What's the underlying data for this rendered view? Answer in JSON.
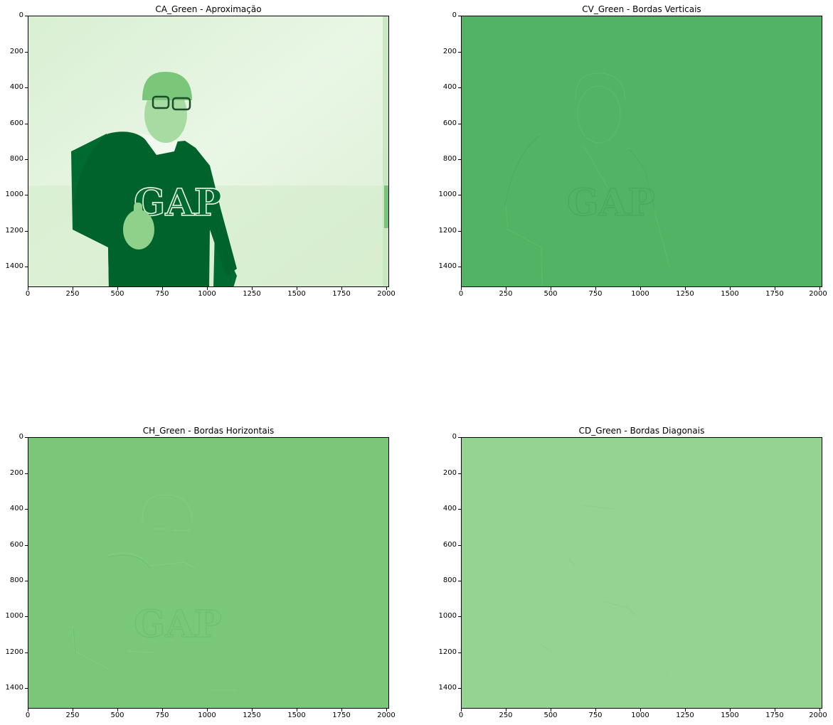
{
  "colors": {
    "ca_light": "#e6f4e1",
    "ca_dark": "#00632b",
    "cv_fill": "#52b365",
    "ch_fill": "#7ac77a",
    "cd_fill": "#94d390"
  },
  "chart_data": [
    {
      "type": "heatmap",
      "title": "CA_Green - Aproximação",
      "colormap": "Greens",
      "xlim": [
        0,
        2016
      ],
      "ylim": [
        1512,
        0
      ],
      "xticks": [
        "0",
        "250",
        "500",
        "750",
        "1000",
        "1250",
        "1500",
        "1750",
        "2000"
      ],
      "yticks": [
        "0",
        "200",
        "400",
        "600",
        "800",
        "1000",
        "1200",
        "1400"
      ],
      "content": "approximation coefficients, green channel"
    },
    {
      "type": "heatmap",
      "title": "CV_Green - Bordas Verticais",
      "colormap": "Greens",
      "xlim": [
        0,
        2016
      ],
      "ylim": [
        1512,
        0
      ],
      "xticks": [
        "0",
        "250",
        "500",
        "750",
        "1000",
        "1250",
        "1500",
        "1750",
        "2000"
      ],
      "yticks": [
        "0",
        "200",
        "400",
        "600",
        "800",
        "1000",
        "1200",
        "1400"
      ],
      "content": "vertical detail coefficients, green channel"
    },
    {
      "type": "heatmap",
      "title": "CH_Green - Bordas Horizontais",
      "colormap": "Greens",
      "xlim": [
        0,
        2016
      ],
      "ylim": [
        1512,
        0
      ],
      "xticks": [
        "0",
        "250",
        "500",
        "750",
        "1000",
        "1250",
        "1500",
        "1750",
        "2000"
      ],
      "yticks": [
        "0",
        "200",
        "400",
        "600",
        "800",
        "1000",
        "1200",
        "1400"
      ],
      "content": "horizontal detail coefficients, green channel"
    },
    {
      "type": "heatmap",
      "title": "CD_Green - Bordas Diagonais",
      "colormap": "Greens",
      "xlim": [
        0,
        2016
      ],
      "ylim": [
        1512,
        0
      ],
      "xticks": [
        "0",
        "250",
        "500",
        "750",
        "1000",
        "1250",
        "1500",
        "1750",
        "2000"
      ],
      "yticks": [
        "0",
        "200",
        "400",
        "600",
        "800",
        "1000",
        "1200",
        "1400"
      ],
      "content": "diagonal detail coefficients, green channel"
    }
  ]
}
